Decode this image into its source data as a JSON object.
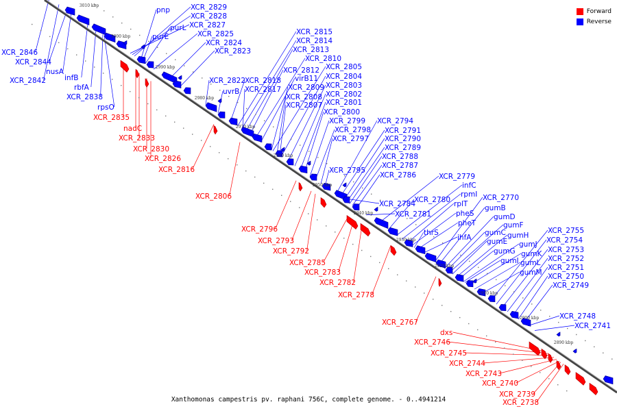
{
  "legend": [
    {
      "label": "Forward",
      "color": "#ff0000"
    },
    {
      "label": "Reverse",
      "color": "#0000ff"
    }
  ],
  "caption": "Xanthomonas campestris pv. raphani 756C, complete genome. - 0..4941214",
  "colors": {
    "forward": "#ff0000",
    "reverse": "#0000ff",
    "backbone": "#444444"
  },
  "ticks": [
    "3010 kbp",
    "3000 kbp",
    "2990 kbp",
    "2980 kbp",
    "2970 kbp",
    "2960 kbp",
    "2950 kbp",
    "2940 kbp",
    "2930 kbp",
    "2920 kbp",
    "2910 kbp",
    "2900 kbp",
    "2890 kbp"
  ],
  "reverse_labels": [
    "pnp",
    "XCR_2829",
    "XCR_2828",
    "XCR_2827",
    "purL",
    "purE",
    "XCR_2825",
    "XCR_2824",
    "XCR_2823",
    "XCR_2846",
    "XCR_2844",
    "nusA",
    "infB",
    "XCR_2842",
    "rbfA",
    "XCR_2838",
    "rpsO",
    "XCR_2815",
    "XCR_2814",
    "XCR_2813",
    "XCR_2810",
    "XCR_2812",
    "XCR_2822",
    "XCR_2818",
    "virB11",
    "uvrB",
    "XCR_2817",
    "XCR_2805",
    "XCR_2804",
    "XCR_2809",
    "XCR_2803",
    "XCR_2808",
    "XCR_2802",
    "XCR_2807",
    "XCR_2801",
    "XCR_2800",
    "XCR_2799",
    "XCR_2794",
    "XCR_2798",
    "XCR_2791",
    "XCR_2797",
    "XCR_2790",
    "XCR_2789",
    "XCR_2788",
    "XCR_2795",
    "XCR_2787",
    "XCR_2786",
    "XCR_2779",
    "infC",
    "rpmI",
    "XCR_2784",
    "XCR_2780",
    "rplT",
    "pheS",
    "XCR_2781",
    "pheT",
    "thrS",
    "ihfA",
    "XCR_2770",
    "gumB",
    "gumD",
    "gumF",
    "gumC",
    "gumH",
    "gumE",
    "gumJ",
    "gumG",
    "gumK",
    "gumI",
    "gumL",
    "gumM",
    "XCR_2755",
    "XCR_2754",
    "XCR_2753",
    "XCR_2752",
    "XCR_2751",
    "XCR_2750",
    "XCR_2749",
    "XCR_2748",
    "XCR_2741"
  ],
  "forward_labels": [
    "XCR_2835",
    "nadC",
    "XCR_2833",
    "XCR_2830",
    "XCR_2826",
    "XCR_2816",
    "XCR_2806",
    "XCR_2796",
    "XCR_2793",
    "XCR_2792",
    "XCR_2785",
    "XCR_2783",
    "XCR_2782",
    "XCR_2778",
    "XCR_2767",
    "dxs",
    "XCR_2746",
    "XCR_2745",
    "XCR_2744",
    "XCR_2743",
    "XCR_2740",
    "XCR_2739",
    "XCR_2738"
  ]
}
